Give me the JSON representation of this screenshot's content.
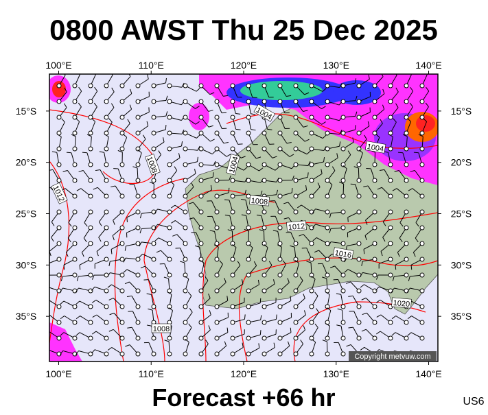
{
  "map": {
    "title": "0800 AWST Thu 25 Dec 2025",
    "footer": "Forecast +66 hr",
    "model": "US6",
    "copyright": "Copyright metvuw.com",
    "xlim": [
      99,
      141
    ],
    "ylim": [
      -39.4,
      -11.4
    ],
    "lon_ticks": [
      {
        "value": 100,
        "label": "100°E"
      },
      {
        "value": 110,
        "label": "110°E"
      },
      {
        "value": 120,
        "label": "120°E"
      },
      {
        "value": 130,
        "label": "130°E"
      },
      {
        "value": 140,
        "label": "140°E"
      }
    ],
    "lat_ticks": [
      {
        "value": -15,
        "label": "15°S"
      },
      {
        "value": -20,
        "label": "20°S"
      },
      {
        "value": -25,
        "label": "25°S"
      },
      {
        "value": -30,
        "label": "30°S"
      },
      {
        "value": -35,
        "label": "35°S"
      }
    ],
    "isobar_labels": [
      1004,
      1004,
      1004,
      1008,
      1012,
      1008,
      1012,
      1016,
      1020,
      1008
    ]
  }
}
